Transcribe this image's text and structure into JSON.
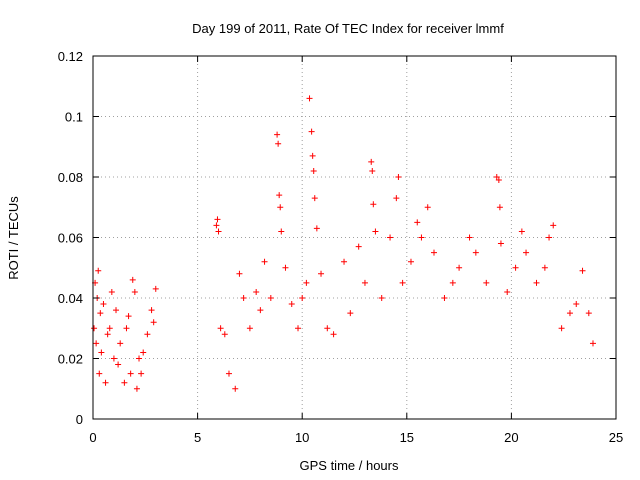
{
  "chart_data": {
    "type": "scatter",
    "title": "Day 199 of 2011, Rate Of TEC Index for receiver lmmf",
    "xlabel": "GPS time / hours",
    "ylabel": "ROTI / TECUs",
    "xlim": [
      0,
      25
    ],
    "ylim": [
      0,
      0.12
    ],
    "xticks": [
      0,
      5,
      10,
      15,
      20,
      25
    ],
    "yticks": [
      0,
      0.02,
      0.04,
      0.06,
      0.08,
      0.1,
      0.12
    ],
    "xtick_labels": [
      "0",
      "5",
      "10",
      "15",
      "20",
      "25"
    ],
    "ytick_labels": [
      "0",
      "0.02",
      "0.04",
      "0.06",
      "0.08",
      "0.1",
      "0.12"
    ],
    "grid": true,
    "marker": "+",
    "color": "#ff0000",
    "data_gaps_hours": [
      [
        3.0,
        5.8
      ]
    ],
    "series": [
      {
        "name": "ROTI",
        "points": [
          [
            0.05,
            0.03
          ],
          [
            0.1,
            0.045
          ],
          [
            0.15,
            0.025
          ],
          [
            0.2,
            0.04
          ],
          [
            0.25,
            0.049
          ],
          [
            0.3,
            0.015
          ],
          [
            0.35,
            0.035
          ],
          [
            0.4,
            0.022
          ],
          [
            0.5,
            0.038
          ],
          [
            0.6,
            0.012
          ],
          [
            0.7,
            0.028
          ],
          [
            0.8,
            0.03
          ],
          [
            0.9,
            0.042
          ],
          [
            1.0,
            0.02
          ],
          [
            1.1,
            0.036
          ],
          [
            1.2,
            0.018
          ],
          [
            1.3,
            0.025
          ],
          [
            1.5,
            0.012
          ],
          [
            1.6,
            0.03
          ],
          [
            1.7,
            0.034
          ],
          [
            1.8,
            0.015
          ],
          [
            1.9,
            0.046
          ],
          [
            2.0,
            0.042
          ],
          [
            2.1,
            0.01
          ],
          [
            2.2,
            0.02
          ],
          [
            2.3,
            0.015
          ],
          [
            2.4,
            0.022
          ],
          [
            2.6,
            0.028
          ],
          [
            2.8,
            0.036
          ],
          [
            2.9,
            0.032
          ],
          [
            3.0,
            0.043
          ],
          [
            5.9,
            0.064
          ],
          [
            5.95,
            0.066
          ],
          [
            6.0,
            0.062
          ],
          [
            6.1,
            0.03
          ],
          [
            6.3,
            0.028
          ],
          [
            6.5,
            0.015
          ],
          [
            6.8,
            0.01
          ],
          [
            7.0,
            0.048
          ],
          [
            7.2,
            0.04
          ],
          [
            7.5,
            0.03
          ],
          [
            7.8,
            0.042
          ],
          [
            8.0,
            0.036
          ],
          [
            8.2,
            0.052
          ],
          [
            8.5,
            0.04
          ],
          [
            8.8,
            0.094
          ],
          [
            8.85,
            0.091
          ],
          [
            8.9,
            0.074
          ],
          [
            8.95,
            0.07
          ],
          [
            9.0,
            0.062
          ],
          [
            9.2,
            0.05
          ],
          [
            9.5,
            0.038
          ],
          [
            9.8,
            0.03
          ],
          [
            10.0,
            0.04
          ],
          [
            10.2,
            0.045
          ],
          [
            10.35,
            0.106
          ],
          [
            10.45,
            0.095
          ],
          [
            10.5,
            0.087
          ],
          [
            10.55,
            0.082
          ],
          [
            10.6,
            0.073
          ],
          [
            10.7,
            0.063
          ],
          [
            10.9,
            0.048
          ],
          [
            11.2,
            0.03
          ],
          [
            11.5,
            0.028
          ],
          [
            12.0,
            0.052
          ],
          [
            12.3,
            0.035
          ],
          [
            12.7,
            0.057
          ],
          [
            13.0,
            0.045
          ],
          [
            13.3,
            0.085
          ],
          [
            13.35,
            0.082
          ],
          [
            13.4,
            0.071
          ],
          [
            13.5,
            0.062
          ],
          [
            13.8,
            0.04
          ],
          [
            14.2,
            0.06
          ],
          [
            14.5,
            0.073
          ],
          [
            14.6,
            0.08
          ],
          [
            14.8,
            0.045
          ],
          [
            15.2,
            0.052
          ],
          [
            15.5,
            0.065
          ],
          [
            15.7,
            0.06
          ],
          [
            16.0,
            0.07
          ],
          [
            16.3,
            0.055
          ],
          [
            16.8,
            0.04
          ],
          [
            17.2,
            0.045
          ],
          [
            17.5,
            0.05
          ],
          [
            18.0,
            0.06
          ],
          [
            18.3,
            0.055
          ],
          [
            18.8,
            0.045
          ],
          [
            19.3,
            0.08
          ],
          [
            19.4,
            0.079
          ],
          [
            19.45,
            0.07
          ],
          [
            19.5,
            0.058
          ],
          [
            19.8,
            0.042
          ],
          [
            20.2,
            0.05
          ],
          [
            20.5,
            0.062
          ],
          [
            20.7,
            0.055
          ],
          [
            21.2,
            0.045
          ],
          [
            21.6,
            0.05
          ],
          [
            21.8,
            0.06
          ],
          [
            22.0,
            0.064
          ],
          [
            22.4,
            0.03
          ],
          [
            22.8,
            0.035
          ],
          [
            23.1,
            0.038
          ],
          [
            23.4,
            0.049
          ],
          [
            23.7,
            0.035
          ],
          [
            23.9,
            0.025
          ]
        ]
      }
    ]
  }
}
